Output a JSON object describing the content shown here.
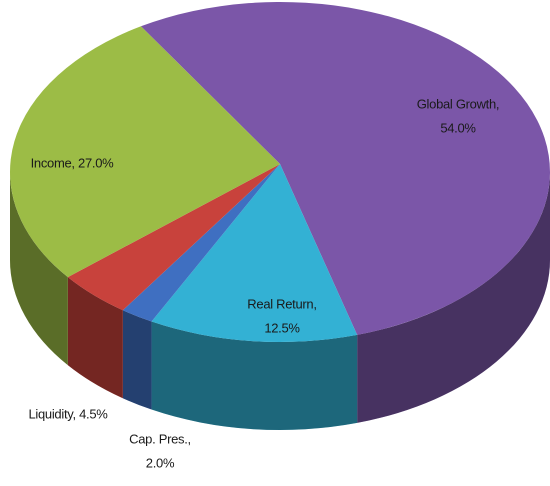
{
  "chart_data": {
    "type": "pie",
    "values": [
      54.0,
      12.5,
      2.0,
      4.5,
      27.0
    ],
    "value_labels": [
      [
        "Global Growth,",
        "54.0%"
      ],
      [
        "Real Return,",
        "12.5%"
      ],
      [
        "Cap. Pres.,",
        "2.0%"
      ],
      [
        "Liquidity, 4.5%"
      ],
      [
        "Income, 27.0%"
      ]
    ],
    "colors": [
      "#7b56a8",
      "#33b1d4",
      "#3f6fc1",
      "#c8423c",
      "#9cbc46"
    ]
  }
}
